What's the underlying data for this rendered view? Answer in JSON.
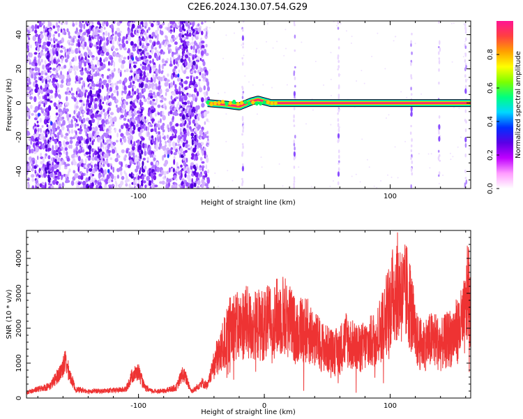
{
  "title": "C2E6.2024.130.07.54.G29",
  "colors": {
    "snr_line": "#ee3333",
    "axes": "#000000",
    "colormap": [
      "#ffffff",
      "#e6c8ff",
      "#8a2be2",
      "#5a00e6",
      "#0030ff",
      "#00d8ff",
      "#00ff60",
      "#c8ff00",
      "#ffd000",
      "#ff5020",
      "#ff2a6a",
      "#ff1493"
    ]
  },
  "chart_data": [
    {
      "type": "heatmap",
      "title": "",
      "xlabel": "Height of straight line (km)",
      "ylabel": "Frequency (Hz)",
      "colorbar_label": "Normalized spectral amplitude",
      "xlim": [
        -189,
        164
      ],
      "ylim": [
        -50,
        48
      ],
      "x_ticks": [
        -100,
        0,
        100
      ],
      "x_tick_labels": [
        "-100",
        "",
        "100"
      ],
      "y_ticks": [
        -40,
        -20,
        0,
        20,
        40
      ],
      "y_tick_labels": [
        "-40",
        "-20",
        "0",
        "20",
        "40"
      ],
      "colorbar_range": [
        0,
        1
      ],
      "colorbar_ticks": [
        0.0,
        0.2,
        0.4,
        0.6,
        0.8
      ],
      "colorbar_tick_labels": [
        "0.0",
        "0.2",
        "0.4",
        "0.6",
        "0.8"
      ],
      "noise_region_x": [
        -189,
        -45
      ],
      "signal": {
        "x_start": -45,
        "x_end": 164,
        "frequency_hz_trace": [
          [
            -45,
            0
          ],
          [
            -30,
            -1
          ],
          [
            -20,
            -2
          ],
          [
            -10,
            1
          ],
          [
            -5,
            2
          ],
          [
            5,
            0
          ],
          [
            164,
            0
          ]
        ],
        "amplitude": 0.95
      },
      "vertical_streaks_x": [
        -17,
        24,
        59,
        117,
        139,
        160
      ]
    },
    {
      "type": "line",
      "title": "",
      "xlabel": "Height of straight line (km)",
      "ylabel": "SNR (10 * v/v)",
      "xlim": [
        -189,
        164
      ],
      "ylim": [
        0,
        4800
      ],
      "x_ticks": [
        -100,
        0,
        100
      ],
      "x_tick_labels": [
        "-100",
        "0",
        "100"
      ],
      "y_ticks": [
        0,
        1000,
        2000,
        3000,
        4000
      ],
      "y_tick_labels": [
        "0",
        "1000",
        "2000",
        "3000",
        "4000"
      ],
      "series": [
        {
          "name": "",
          "x": [
            -189,
            -180,
            -170,
            -162,
            -158,
            -155,
            -150,
            -140,
            -130,
            -120,
            -110,
            -105,
            -100,
            -95,
            -90,
            -80,
            -70,
            -65,
            -62,
            -58,
            -55,
            -50,
            -45,
            -40,
            -35,
            -30,
            -28,
            -25,
            -20,
            -15,
            -10,
            -5,
            0,
            5,
            10,
            15,
            20,
            25,
            30,
            35,
            40,
            45,
            50,
            55,
            60,
            65,
            70,
            75,
            80,
            85,
            90,
            95,
            100,
            103,
            105,
            108,
            110,
            113,
            115,
            118,
            120,
            125,
            130,
            135,
            140,
            145,
            150,
            155,
            158,
            160,
            162,
            164
          ],
          "y": [
            150,
            250,
            350,
            750,
            1050,
            700,
            250,
            200,
            200,
            220,
            250,
            650,
            750,
            300,
            200,
            200,
            300,
            700,
            550,
            200,
            250,
            450,
            350,
            1000,
            1300,
            1700,
            1900,
            2100,
            2000,
            2200,
            2000,
            2100,
            2100,
            2200,
            2300,
            2400,
            2200,
            1900,
            2000,
            1900,
            1700,
            1500,
            1400,
            1300,
            1400,
            1700,
            1500,
            1400,
            1500,
            1600,
            1800,
            2200,
            2700,
            3000,
            3200,
            3100,
            2900,
            3000,
            2800,
            2300,
            1700,
            1500,
            1600,
            1700,
            1500,
            1650,
            1800,
            2000,
            2200,
            2400,
            3200,
            2500
          ]
        }
      ]
    }
  ]
}
